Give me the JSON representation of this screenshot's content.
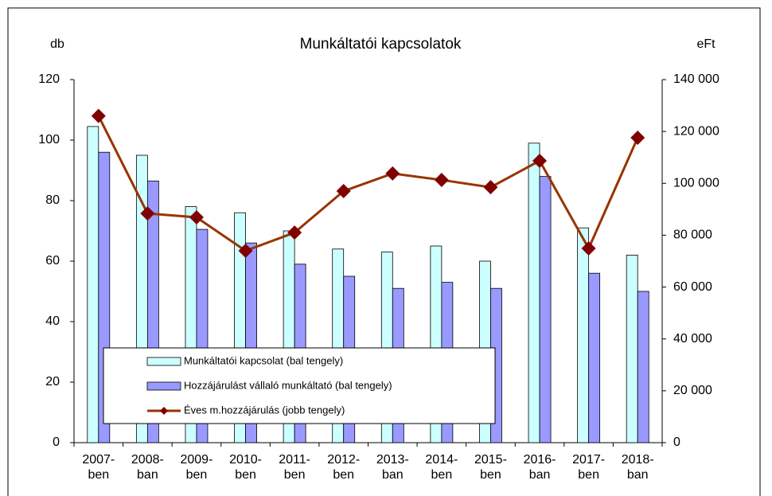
{
  "chart_data": {
    "type": "bar-line",
    "title": "Munkáltatói kapcsolatok",
    "y_label": "db",
    "y2_label": "eFt",
    "categories": [
      [
        "2007-",
        "ben"
      ],
      [
        "2008-",
        "ban"
      ],
      [
        "2009-",
        "ben"
      ],
      [
        "2010-",
        "ben"
      ],
      [
        "2011-",
        "ben"
      ],
      [
        "2012-",
        "ben"
      ],
      [
        "2013-",
        "ban"
      ],
      [
        "2014-",
        "ben"
      ],
      [
        "2015-",
        "ben"
      ],
      [
        "2016-",
        "ban"
      ],
      [
        "2017-",
        "ben"
      ],
      [
        "2018-",
        "ban"
      ]
    ],
    "series": [
      {
        "name": "Munkáltatói kapcsolat (bal tengely)",
        "type": "bar",
        "color": "#ccffff",
        "values": [
          104.5,
          95,
          78,
          76,
          70,
          64,
          63,
          65,
          60,
          99,
          71,
          62
        ]
      },
      {
        "name": "Hozzájárulást vállaló munkáltató (bal tengely)",
        "type": "bar",
        "color": "#9999ff",
        "values": [
          96,
          86.5,
          70.5,
          66,
          59,
          55,
          51,
          53,
          51,
          88,
          56,
          50
        ]
      },
      {
        "name": "Éves m.hozzájárulás (jobb tengely)",
        "type": "line",
        "axis": "y2",
        "color": "#993300",
        "marker_color": "#800000",
        "values": [
          126000,
          88400,
          86900,
          74000,
          81000,
          97000,
          103800,
          101300,
          98500,
          108700,
          74900,
          117600
        ]
      }
    ],
    "ylim": [
      0,
      120
    ],
    "yticks": [
      0,
      20,
      40,
      60,
      80,
      100,
      120
    ],
    "y2lim": [
      0,
      140000
    ],
    "y2ticks": [
      0,
      {
        "value": 20000,
        "label": "20 000"
      },
      {
        "value": 40000,
        "label": "40 000"
      },
      {
        "value": 60000,
        "label": "60 000"
      },
      {
        "value": 80000,
        "label": "80 000"
      },
      {
        "value": 100000,
        "label": "100 000"
      },
      {
        "value": 120000,
        "label": "120 000"
      },
      {
        "value": 140000,
        "label": "140 000"
      }
    ],
    "grid": false
  }
}
